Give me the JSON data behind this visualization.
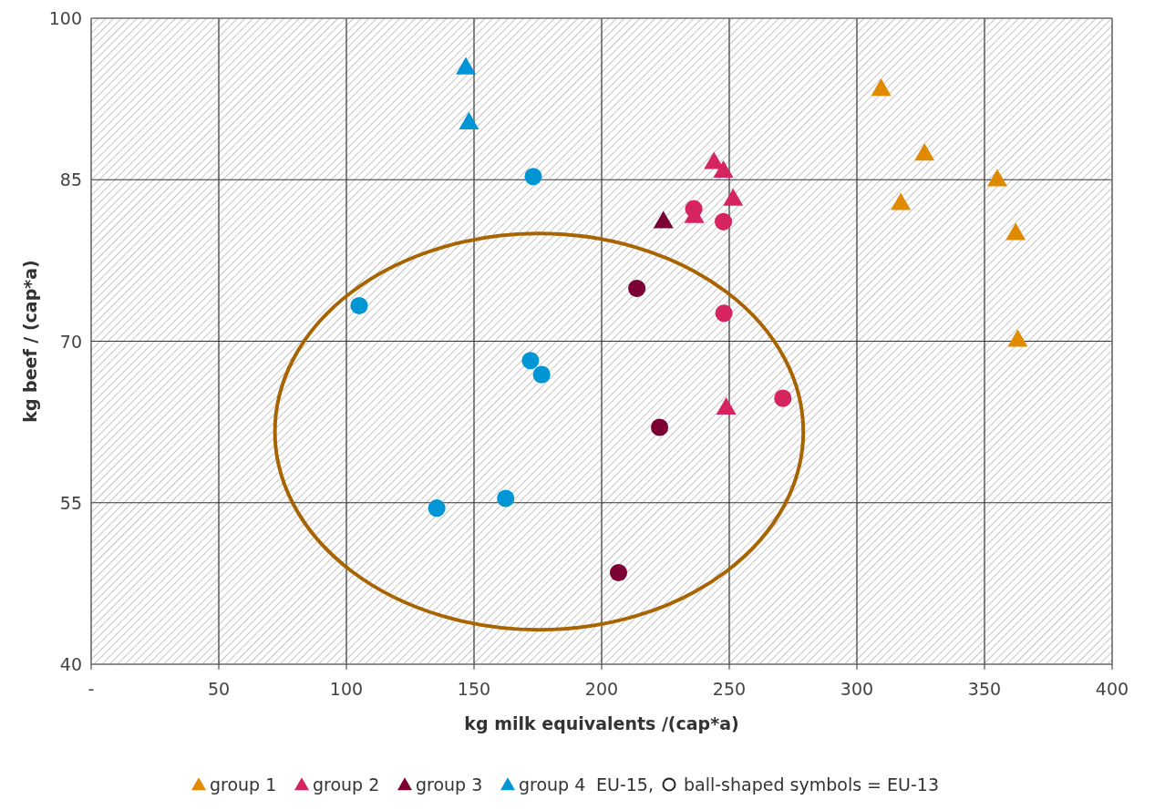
{
  "chart_data": {
    "type": "scatter",
    "xlabel": "kg milk equivalents /(cap*a)",
    "ylabel": "kg beef / (cap*a)",
    "xlim": [
      0,
      400
    ],
    "xticks": [
      {
        "value": 0,
        "label": "-"
      },
      50,
      100,
      150,
      200,
      250,
      300,
      350,
      400
    ],
    "ylim": [
      40,
      100
    ],
    "yticks": [
      40,
      55,
      70,
      85,
      100
    ],
    "grid": true,
    "legend": "bottom",
    "series": [
      {
        "name": "group 1",
        "color": "#e08a00",
        "marker": "triangle",
        "x": [
          309.5,
          326.5,
          317.2,
          355,
          362.2,
          363
        ],
        "values": [
          93.4,
          87.4,
          82.8,
          85.0,
          80.0,
          70.1
        ]
      },
      {
        "name": "group 2",
        "color": "#d6245e",
        "marker": "triangle",
        "x": [
          244,
          247.7,
          251.5,
          236.3,
          248.8
        ],
        "values": [
          86.6,
          85.8,
          83.2,
          81.6,
          63.8
        ]
      },
      {
        "name": "group 3",
        "color": "#7b0034",
        "marker": "triangle",
        "x": [
          224.2
        ],
        "values": [
          81.1
        ]
      },
      {
        "name": "group 4",
        "color": "#0096d6",
        "marker": "triangle",
        "x": [
          146.8,
          148
        ],
        "values": [
          95.4,
          90.3
        ]
      },
      {
        "color": "#d6245e",
        "marker": "circle",
        "x": [
          236.1,
          247.7,
          247.9,
          271
        ],
        "values": [
          82.3,
          81.1,
          72.6,
          64.7
        ]
      },
      {
        "color": "#7b0034",
        "marker": "circle",
        "x": [
          213.8,
          222.7,
          206.6
        ],
        "values": [
          74.9,
          62.0,
          48.5
        ]
      },
      {
        "color": "#0096d6",
        "marker": "circle",
        "x": [
          173.2,
          105,
          172.1,
          176.5,
          162.4,
          135.4
        ],
        "values": [
          85.3,
          73.3,
          68.2,
          66.9,
          55.4,
          54.5
        ]
      }
    ],
    "annotations": [
      "EU-15,",
      "ball-shaped symbols = EU-13"
    ]
  }
}
